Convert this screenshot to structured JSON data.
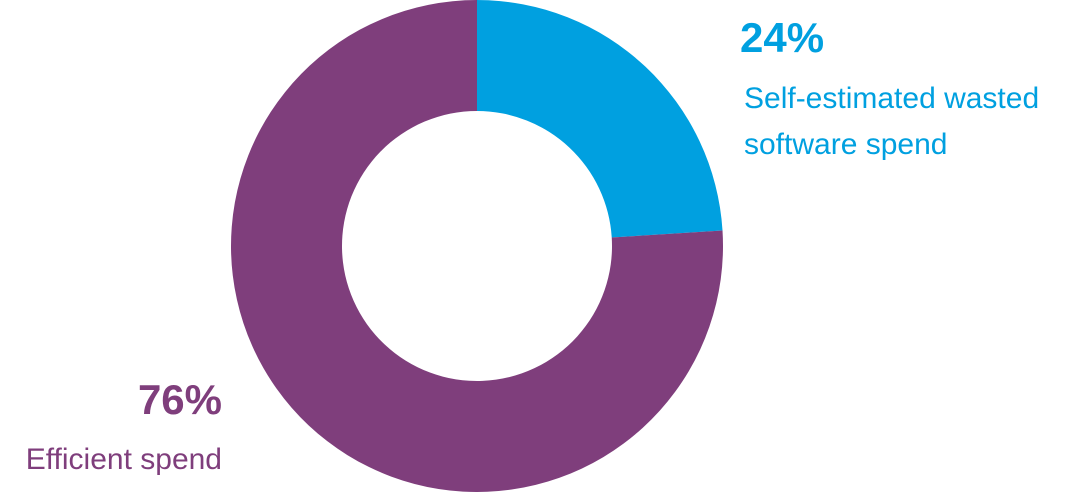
{
  "chart_data": {
    "type": "donut",
    "categories": [
      "Self-estimated wasted software spend",
      "Efficient spend"
    ],
    "values": [
      24,
      76
    ],
    "value_labels": [
      "24%",
      "76%"
    ],
    "colors": [
      "#00a0e0",
      "#7f3e7c"
    ]
  }
}
